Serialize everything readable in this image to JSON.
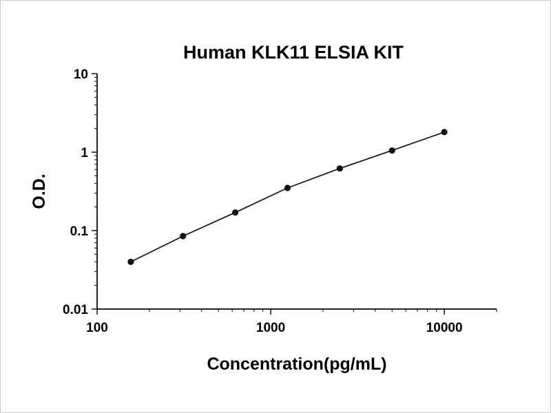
{
  "chart_data": {
    "type": "line",
    "title": "Human KLK11 ELSIA KIT",
    "xlabel": "Concentration(pg/mL)",
    "ylabel": "O.D.",
    "x_scale": "log",
    "y_scale": "log",
    "xlim": [
      100,
      20000
    ],
    "ylim": [
      0.01,
      10
    ],
    "x_ticks": [
      "100",
      "1000",
      "10000"
    ],
    "y_ticks": [
      "10",
      "1",
      "0.1",
      "0.01"
    ],
    "grid": false,
    "legend": false,
    "line_color": "#111111",
    "marker": "circle",
    "series": [
      {
        "name": "standard-curve",
        "x": [
          156.25,
          312.5,
          625,
          1250,
          2500,
          5000,
          10000
        ],
        "y": [
          0.04,
          0.085,
          0.17,
          0.35,
          0.62,
          1.05,
          1.8
        ]
      }
    ]
  }
}
